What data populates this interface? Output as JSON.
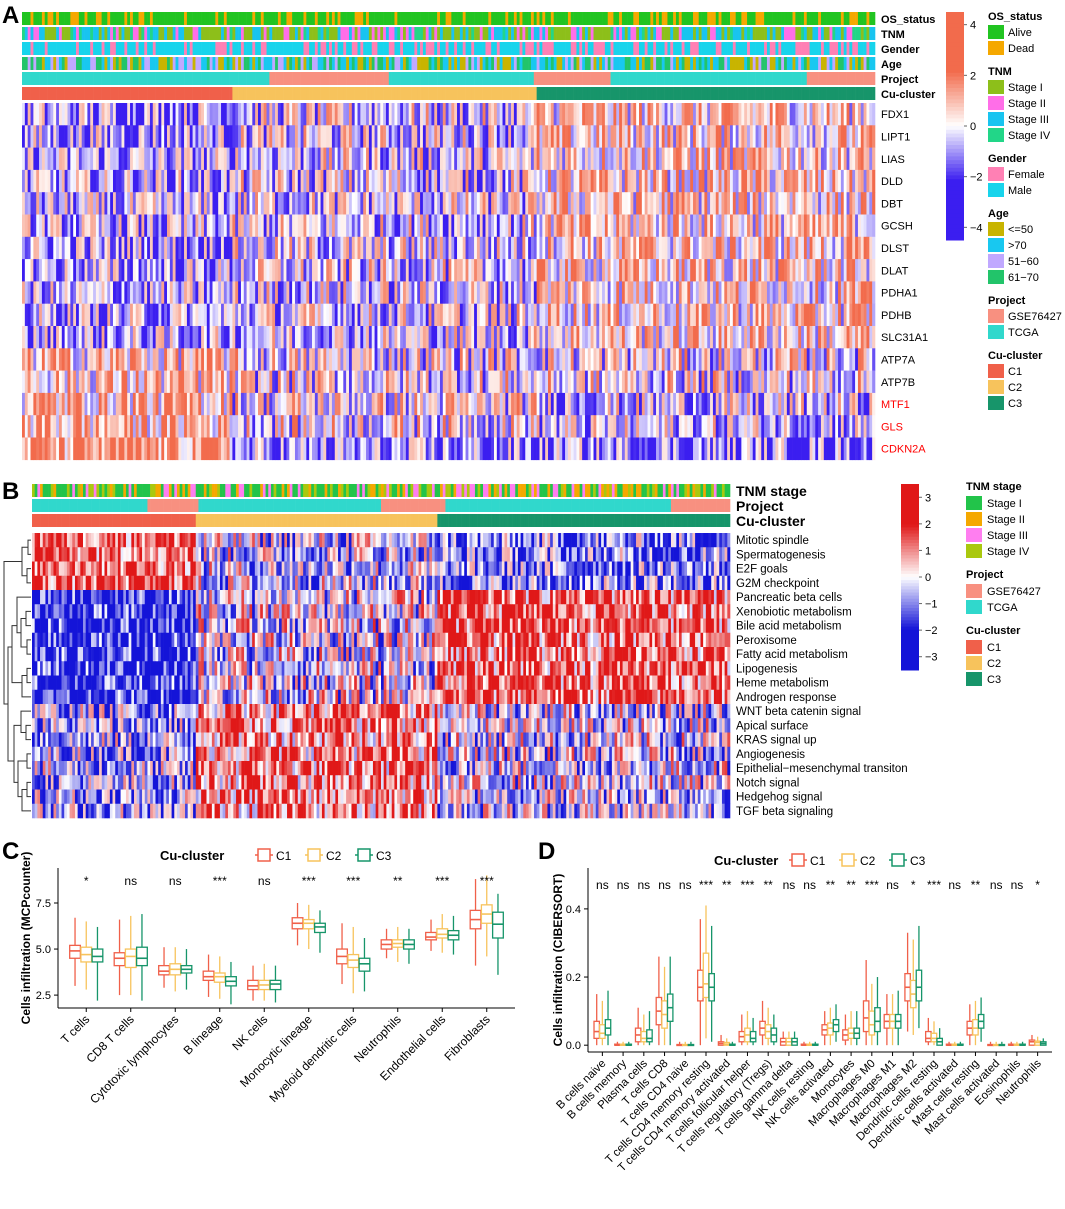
{
  "panel_labels": {
    "a": "A",
    "b": "B",
    "c": "C",
    "d": "D"
  },
  "colors": {
    "heat_low": "#3b1ef0",
    "heat_mid": "#ffffff",
    "heat_high": "#f26b4c",
    "heatB_low": "#1414d8",
    "heatB_mid": "#ffffff",
    "heatB_high": "#e01818",
    "C1": "#f0604a",
    "C2": "#f7c35c",
    "C3": "#17956a",
    "Alive": "#21c421",
    "Dead": "#f5a800",
    "Stage I": "#8dbf1a",
    "Stage II": "#ff6ee8",
    "Stage III": "#18c4f0",
    "Stage IV": "#22d688",
    "StageB I": "#22c44a",
    "StageB II": "#f5a800",
    "StageB III": "#ff7ef0",
    "StageB IV": "#aac80e",
    "Female": "#ff80b4",
    "Male": "#18d4ec",
    "<=50": "#c8b400",
    ">70": "#18c8f0",
    "51-60": "#c0a8ff",
    "61-70": "#22c46a",
    "GSE76427": "#f89080",
    "TCGA": "#30d8cc",
    "red_gene": "#ff0000"
  },
  "chart_data": [
    {
      "type": "heatmap",
      "panel": "A",
      "track_labels": [
        "OS_status",
        "TNM",
        "Gender",
        "Age",
        "Project",
        "Cu-cluster"
      ],
      "rows": [
        "FDX1",
        "LIPT1",
        "LIAS",
        "DLD",
        "DBT",
        "GCSH",
        "DLST",
        "DLAT",
        "PDHA1",
        "PDHB",
        "SLC31A1",
        "ATP7A",
        "ATP7B",
        "MTF1",
        "GLS",
        "CDKN2A"
      ],
      "highlighted_rows": [
        "MTF1",
        "GLS",
        "CDKN2A"
      ],
      "colorbar": {
        "ticks": [
          4,
          2,
          0,
          -2,
          -4
        ],
        "tick_labels": [
          "4",
          "2",
          "0",
          "−2",
          "−4"
        ],
        "range": [
          -4.5,
          4.5
        ]
      },
      "cluster_fractions": {
        "C1": 0.245,
        "C2": 0.355,
        "C3": 0.4
      },
      "legend": [
        {
          "title": "OS_status",
          "items": [
            "Alive",
            "Dead"
          ]
        },
        {
          "title": "TNM",
          "items": [
            "Stage I",
            "Stage II",
            "Stage III",
            "Stage IV"
          ]
        },
        {
          "title": "Gender",
          "items": [
            "Female",
            "Male"
          ]
        },
        {
          "title": "Age",
          "items": [
            "<=50",
            ">70",
            "51−60",
            "61−70"
          ]
        },
        {
          "title": "Project",
          "items": [
            "GSE76427",
            "TCGA"
          ]
        },
        {
          "title": "Cu-cluster",
          "items": [
            "C1",
            "C2",
            "C3"
          ]
        }
      ]
    },
    {
      "type": "heatmap",
      "panel": "B",
      "track_labels": [
        "TNM stage",
        "Project",
        "Cu-cluster"
      ],
      "rows": [
        "Mitotic spindle",
        "Spermatogenesis",
        "E2F goals",
        "G2M checkpoint",
        "Pancreatic beta cells",
        "Xenobiotic metabolism",
        "Bile acid metabolism",
        "Peroxisome",
        "Fatty acid metabolism",
        "Lipogenesis",
        "Heme metabolism",
        "Androgen response",
        "WNT beta catenin signal",
        "Apical surface",
        "KRAS signal up",
        "Angiogenesis",
        "Epithelial−mesenchymal transiton",
        "Notch signal",
        "Hedgehog signal",
        "TGF beta signaling"
      ],
      "colorbar": {
        "ticks": [
          3,
          2,
          1,
          0,
          -1,
          -2,
          -3
        ],
        "tick_labels": [
          "3",
          "2",
          "1",
          "0",
          "−1",
          "−2",
          "−3"
        ],
        "range": [
          -3.5,
          3.5
        ]
      },
      "cluster_fractions": {
        "C1": 0.235,
        "C2": 0.345,
        "C3": 0.42
      },
      "legend": [
        {
          "title": "TNM stage",
          "items": [
            "Stage I",
            "Stage II",
            "Stage III",
            "Stage IV"
          ]
        },
        {
          "title": "Project",
          "items": [
            "GSE76427",
            "TCGA"
          ]
        },
        {
          "title": "Cu-cluster",
          "items": [
            "C1",
            "C2",
            "C3"
          ]
        }
      ]
    },
    {
      "type": "boxplot",
      "panel": "C",
      "legend_title": "Cu-cluster",
      "series": [
        "C1",
        "C2",
        "C3"
      ],
      "ylabel": "Cells infiltration (MCPcounter)",
      "ylim": [
        1.8,
        9.4
      ],
      "yticks": [
        2.5,
        5.0,
        7.5
      ],
      "ytick_labels": [
        "2.5",
        "5.0",
        "7.5"
      ],
      "categories": [
        "T cells",
        "CD8 T cells",
        "Cytotoxic lymphocytes",
        "B lineage",
        "NK cells",
        "Monocytic lineage",
        "Myeloid dendritic cells",
        "Neutrophils",
        "Endothelial cells",
        "Fibroblasts"
      ],
      "significance": [
        "*",
        "ns",
        "ns",
        "***",
        "ns",
        "***",
        "***",
        "**",
        "***",
        "***"
      ],
      "boxes": [
        [
          [
            3.0,
            4.5,
            4.9,
            5.2,
            6.7
          ],
          [
            2.8,
            4.3,
            4.7,
            5.1,
            6.5
          ],
          [
            2.2,
            4.3,
            4.6,
            5.0,
            6.2
          ]
        ],
        [
          [
            2.5,
            4.1,
            4.5,
            4.8,
            6.6
          ],
          [
            2.5,
            4.0,
            4.6,
            5.0,
            6.8
          ],
          [
            2.2,
            4.1,
            4.5,
            5.1,
            6.9
          ]
        ],
        [
          [
            2.9,
            3.6,
            3.8,
            4.1,
            5.1
          ],
          [
            2.7,
            3.6,
            3.9,
            4.2,
            5.1
          ],
          [
            2.8,
            3.7,
            3.9,
            4.1,
            5.0
          ]
        ],
        [
          [
            2.4,
            3.3,
            3.5,
            3.8,
            4.7
          ],
          [
            2.3,
            3.2,
            3.5,
            3.7,
            4.6
          ],
          [
            2.0,
            3.0,
            3.25,
            3.5,
            4.3
          ]
        ],
        [
          [
            2.2,
            2.8,
            3.0,
            3.3,
            4.1
          ],
          [
            2.2,
            2.8,
            3.05,
            3.3,
            4.2
          ],
          [
            2.1,
            2.8,
            3.1,
            3.3,
            4.1
          ]
        ],
        [
          [
            5.2,
            6.1,
            6.4,
            6.7,
            7.5
          ],
          [
            5.0,
            6.1,
            6.4,
            6.6,
            7.4
          ],
          [
            4.8,
            5.9,
            6.2,
            6.4,
            7.1
          ]
        ],
        [
          [
            3.1,
            4.2,
            4.6,
            5.0,
            6.4
          ],
          [
            2.6,
            4.0,
            4.4,
            4.7,
            6.2
          ],
          [
            2.7,
            3.8,
            4.2,
            4.5,
            5.6
          ]
        ],
        [
          [
            4.5,
            5.0,
            5.25,
            5.5,
            6.1
          ],
          [
            4.3,
            5.1,
            5.3,
            5.5,
            6.2
          ],
          [
            4.2,
            5.0,
            5.25,
            5.5,
            6.1
          ]
        ],
        [
          [
            4.9,
            5.5,
            5.65,
            5.9,
            6.6
          ],
          [
            4.8,
            5.6,
            5.8,
            6.1,
            6.9
          ],
          [
            4.7,
            5.5,
            5.75,
            6.0,
            6.8
          ]
        ],
        [
          [
            4.1,
            6.1,
            6.6,
            7.1,
            8.8
          ],
          [
            4.6,
            6.4,
            6.9,
            7.4,
            9.0
          ],
          [
            3.6,
            5.6,
            6.35,
            7.0,
            8.0
          ]
        ]
      ]
    },
    {
      "type": "boxplot",
      "panel": "D",
      "legend_title": "Cu-cluster",
      "series": [
        "C1",
        "C2",
        "C3"
      ],
      "ylabel": "Cells infiltration (CIBERSORT)",
      "ylim": [
        -0.02,
        0.52
      ],
      "yticks": [
        0.0,
        0.2,
        0.4
      ],
      "ytick_labels": [
        "0.0",
        "0.2",
        "0.4"
      ],
      "categories": [
        "B cells naive",
        "B cells memory",
        "Plasma cells",
        "T cells CD8",
        "T cells CD4 naive",
        "T cells CD4 memory resting",
        "T cells CD4 memory activated",
        "T cells follicular helper",
        "T cells regulatory (Tregs)",
        "T cells gamma delta",
        "NK cells resting",
        "NK cells activated",
        "Monocytes",
        "Macrophages M0",
        "Macrophages M1",
        "Macrophages M2",
        "Dendritic cells resting",
        "Dendritic cells activated",
        "Mast cells resting",
        "Mast cells activated",
        "Eosinophils",
        "Neutrophils"
      ],
      "significance": [
        "ns",
        "ns",
        "ns",
        "ns",
        "ns",
        "***",
        "**",
        "***",
        "**",
        "ns",
        "ns",
        "**",
        "**",
        "***",
        "ns",
        "*",
        "***",
        "ns",
        "**",
        "ns",
        "ns",
        "*"
      ],
      "boxes": [
        [
          [
            0,
            0.02,
            0.04,
            0.07,
            0.15
          ],
          [
            0,
            0.02,
            0.035,
            0.06,
            0.13
          ],
          [
            0,
            0.03,
            0.05,
            0.075,
            0.16
          ]
        ],
        [
          [
            0,
            0,
            0,
            0.003,
            0.01
          ],
          [
            0,
            0,
            0,
            0.003,
            0.01
          ],
          [
            0,
            0,
            0,
            0.003,
            0.01
          ]
        ],
        [
          [
            0,
            0.01,
            0.03,
            0.05,
            0.11
          ],
          [
            0,
            0.01,
            0.02,
            0.04,
            0.09
          ],
          [
            0,
            0.01,
            0.02,
            0.045,
            0.1
          ]
        ],
        [
          [
            0,
            0.06,
            0.1,
            0.14,
            0.26
          ],
          [
            0,
            0.05,
            0.09,
            0.13,
            0.23
          ],
          [
            0,
            0.07,
            0.11,
            0.15,
            0.26
          ]
        ],
        [
          [
            0,
            0,
            0,
            0.002,
            0.01
          ],
          [
            0,
            0,
            0,
            0.002,
            0.01
          ],
          [
            0,
            0,
            0,
            0.002,
            0.01
          ]
        ],
        [
          [
            0,
            0.13,
            0.17,
            0.22,
            0.37
          ],
          [
            0.02,
            0.14,
            0.18,
            0.27,
            0.41
          ],
          [
            0.01,
            0.13,
            0.17,
            0.21,
            0.35
          ]
        ],
        [
          [
            0,
            0,
            0.005,
            0.01,
            0.03
          ],
          [
            0,
            0,
            0.003,
            0.008,
            0.02
          ],
          [
            0,
            0,
            0,
            0.003,
            0.01
          ]
        ],
        [
          [
            0,
            0.01,
            0.025,
            0.04,
            0.09
          ],
          [
            0,
            0.01,
            0.03,
            0.05,
            0.1
          ],
          [
            0,
            0.01,
            0.02,
            0.04,
            0.08
          ]
        ],
        [
          [
            0,
            0.03,
            0.05,
            0.07,
            0.13
          ],
          [
            0,
            0.02,
            0.04,
            0.06,
            0.11
          ],
          [
            0,
            0.01,
            0.03,
            0.05,
            0.09
          ]
        ],
        [
          [
            0,
            0,
            0.01,
            0.02,
            0.04
          ],
          [
            0,
            0,
            0.01,
            0.02,
            0.04
          ],
          [
            0,
            0,
            0.01,
            0.02,
            0.04
          ]
        ],
        [
          [
            0,
            0,
            0,
            0.003,
            0.01
          ],
          [
            0,
            0,
            0,
            0.003,
            0.01
          ],
          [
            0,
            0,
            0,
            0.003,
            0.01
          ]
        ],
        [
          [
            0,
            0.03,
            0.045,
            0.06,
            0.1
          ],
          [
            0,
            0.03,
            0.05,
            0.065,
            0.11
          ],
          [
            0.01,
            0.04,
            0.06,
            0.075,
            0.12
          ]
        ],
        [
          [
            0,
            0.015,
            0.03,
            0.045,
            0.09
          ],
          [
            0,
            0.02,
            0.035,
            0.05,
            0.1
          ],
          [
            0,
            0.02,
            0.035,
            0.05,
            0.1
          ]
        ],
        [
          [
            0,
            0.04,
            0.08,
            0.13,
            0.25
          ],
          [
            0,
            0.03,
            0.06,
            0.1,
            0.18
          ],
          [
            0,
            0.04,
            0.07,
            0.11,
            0.2
          ]
        ],
        [
          [
            0,
            0.05,
            0.07,
            0.09,
            0.15
          ],
          [
            0,
            0.05,
            0.07,
            0.09,
            0.15
          ],
          [
            0,
            0.05,
            0.07,
            0.09,
            0.16
          ]
        ],
        [
          [
            0.04,
            0.13,
            0.17,
            0.21,
            0.33
          ],
          [
            0.03,
            0.11,
            0.15,
            0.19,
            0.31
          ],
          [
            0.05,
            0.13,
            0.17,
            0.22,
            0.35
          ]
        ],
        [
          [
            0,
            0.01,
            0.02,
            0.04,
            0.08
          ],
          [
            0,
            0.01,
            0.02,
            0.035,
            0.07
          ],
          [
            0,
            0,
            0.01,
            0.02,
            0.05
          ]
        ],
        [
          [
            0,
            0,
            0,
            0.003,
            0.01
          ],
          [
            0,
            0,
            0,
            0.003,
            0.01
          ],
          [
            0,
            0,
            0,
            0.003,
            0.01
          ]
        ],
        [
          [
            0,
            0.03,
            0.05,
            0.07,
            0.12
          ],
          [
            0,
            0.03,
            0.05,
            0.075,
            0.13
          ],
          [
            0.01,
            0.05,
            0.07,
            0.09,
            0.14
          ]
        ],
        [
          [
            0,
            0,
            0,
            0.002,
            0.01
          ],
          [
            0,
            0,
            0,
            0.002,
            0.01
          ],
          [
            0,
            0,
            0,
            0.002,
            0.01
          ]
        ],
        [
          [
            0,
            0,
            0,
            0.003,
            0.01
          ],
          [
            0,
            0,
            0,
            0.003,
            0.01
          ],
          [
            0,
            0,
            0,
            0.003,
            0.01
          ]
        ],
        [
          [
            0,
            0,
            0.01,
            0.015,
            0.03
          ],
          [
            0,
            0,
            0.008,
            0.012,
            0.025
          ],
          [
            0,
            0,
            0.005,
            0.01,
            0.02
          ]
        ]
      ]
    }
  ]
}
